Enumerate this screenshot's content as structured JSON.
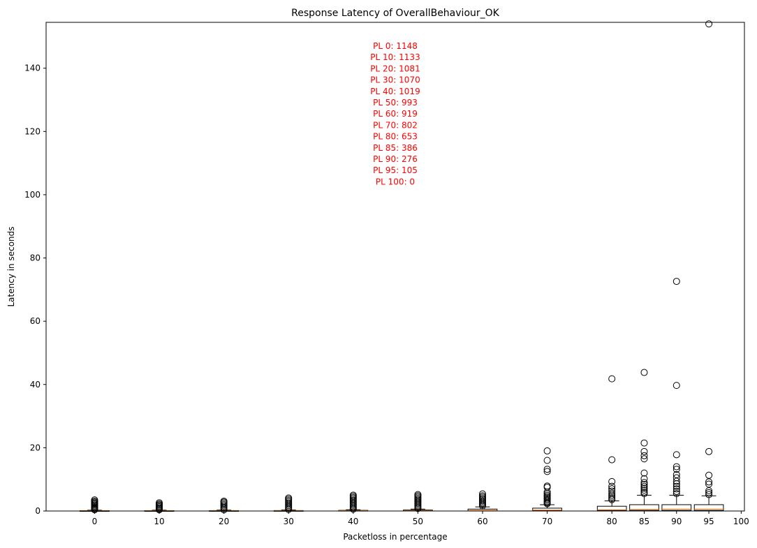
{
  "chart_data": {
    "type": "box",
    "title": "Response Latency of OverallBehaviour_OK",
    "xlabel": "Packetloss in percentage",
    "ylabel": "Latency in seconds",
    "xlim": [
      -7.5,
      100.5
    ],
    "ylim": [
      0,
      154.5
    ],
    "xticks": [
      0,
      10,
      20,
      30,
      40,
      50,
      60,
      70,
      80,
      85,
      90,
      95,
      100
    ],
    "yticks": [
      0,
      20,
      40,
      60,
      80,
      100,
      120,
      140
    ],
    "boxes": [
      {
        "x": 0,
        "q1": 0.05,
        "median": 0.08,
        "q3": 0.12,
        "whisker_low": 0.0,
        "whisker_high": 0.25,
        "outliers": [
          0.4,
          0.7,
          1.0,
          1.3,
          1.6,
          1.9,
          2.2,
          2.5,
          2.8,
          3.1,
          3.5
        ]
      },
      {
        "x": 10,
        "q1": 0.05,
        "median": 0.08,
        "q3": 0.12,
        "whisker_low": 0.0,
        "whisker_high": 0.25,
        "outliers": [
          0.4,
          0.7,
          1.0,
          1.3,
          1.6,
          1.9,
          2.2,
          2.6
        ]
      },
      {
        "x": 20,
        "q1": 0.05,
        "median": 0.08,
        "q3": 0.13,
        "whisker_low": 0.0,
        "whisker_high": 0.28,
        "outliers": [
          0.4,
          0.8,
          1.2,
          1.6,
          2.0,
          2.4,
          2.8,
          3.1
        ]
      },
      {
        "x": 30,
        "q1": 0.05,
        "median": 0.09,
        "q3": 0.14,
        "whisker_low": 0.0,
        "whisker_high": 0.3,
        "outliers": [
          0.5,
          0.9,
          1.3,
          1.7,
          2.1,
          2.5,
          2.9,
          3.3,
          3.7,
          4.1
        ]
      },
      {
        "x": 40,
        "q1": 0.06,
        "median": 0.1,
        "q3": 0.2,
        "whisker_low": 0.0,
        "whisker_high": 0.4,
        "outliers": [
          0.6,
          1.0,
          1.4,
          1.8,
          2.2,
          2.6,
          3.0,
          3.4,
          3.8,
          4.2,
          4.6,
          5.0
        ]
      },
      {
        "x": 50,
        "q1": 0.07,
        "median": 0.12,
        "q3": 0.3,
        "whisker_low": 0.0,
        "whisker_high": 0.6,
        "outliers": [
          0.8,
          1.2,
          1.6,
          2.0,
          2.4,
          2.8,
          3.2,
          3.6,
          4.0,
          4.4,
          4.8,
          5.2
        ]
      },
      {
        "x": 60,
        "q1": 0.1,
        "median": 0.2,
        "q3": 0.6,
        "whisker_low": 0.0,
        "whisker_high": 1.3,
        "outliers": [
          1.6,
          2.0,
          2.4,
          2.8,
          3.2,
          3.6,
          4.0,
          4.4,
          4.8,
          5.4
        ]
      },
      {
        "x": 70,
        "q1": 0.15,
        "median": 0.3,
        "q3": 0.9,
        "whisker_low": 0.0,
        "whisker_high": 2.0,
        "outliers": [
          2.3,
          2.6,
          3.0,
          3.4,
          3.8,
          4.2,
          4.6,
          5.0,
          5.5,
          6.0,
          7.5,
          7.9,
          12.5,
          13.2,
          16.0,
          19.0
        ]
      },
      {
        "x": 80,
        "q1": 0.2,
        "median": 0.4,
        "q3": 1.5,
        "whisker_low": 0.0,
        "whisker_high": 3.2,
        "outliers": [
          3.6,
          4.0,
          4.5,
          5.0,
          5.6,
          6.3,
          7.0,
          7.8,
          9.3,
          16.2,
          41.8
        ]
      },
      {
        "x": 85,
        "q1": 0.2,
        "median": 0.5,
        "q3": 2.0,
        "whisker_low": 0.0,
        "whisker_high": 5.0,
        "outliers": [
          5.5,
          6.0,
          6.6,
          7.2,
          7.8,
          8.4,
          9.0,
          10.2,
          12.0,
          16.5,
          17.5,
          18.8,
          21.5,
          43.8
        ]
      },
      {
        "x": 90,
        "q1": 0.2,
        "median": 0.6,
        "q3": 2.0,
        "whisker_low": 0.0,
        "whisker_high": 5.0,
        "outliers": [
          5.5,
          6.2,
          7.0,
          7.8,
          8.6,
          9.4,
          10.5,
          11.5,
          13.2,
          14.0,
          17.8,
          39.7,
          72.6
        ]
      },
      {
        "x": 95,
        "q1": 0.2,
        "median": 0.6,
        "q3": 2.0,
        "whisker_low": 0.0,
        "whisker_high": 4.8,
        "outliers": [
          5.2,
          5.8,
          6.4,
          8.5,
          9.2,
          11.3,
          18.8,
          154.0
        ]
      }
    ],
    "annotations": [
      "PL 0: 1148",
      "PL 10: 1133",
      "PL 20: 1081",
      "PL 30: 1070",
      "PL 40: 1019",
      "PL 50: 993",
      "PL 60: 919",
      "PL 70: 802",
      "PL 80: 653",
      "PL 85: 386",
      "PL 90: 276",
      "PL 95: 105",
      "PL 100: 0"
    ],
    "colors": {
      "box_edge": "#000000",
      "box_face": "#ffffff",
      "median": "#ff7f0e",
      "annotation": "#ff0000"
    },
    "grid": false,
    "legend": "none"
  }
}
